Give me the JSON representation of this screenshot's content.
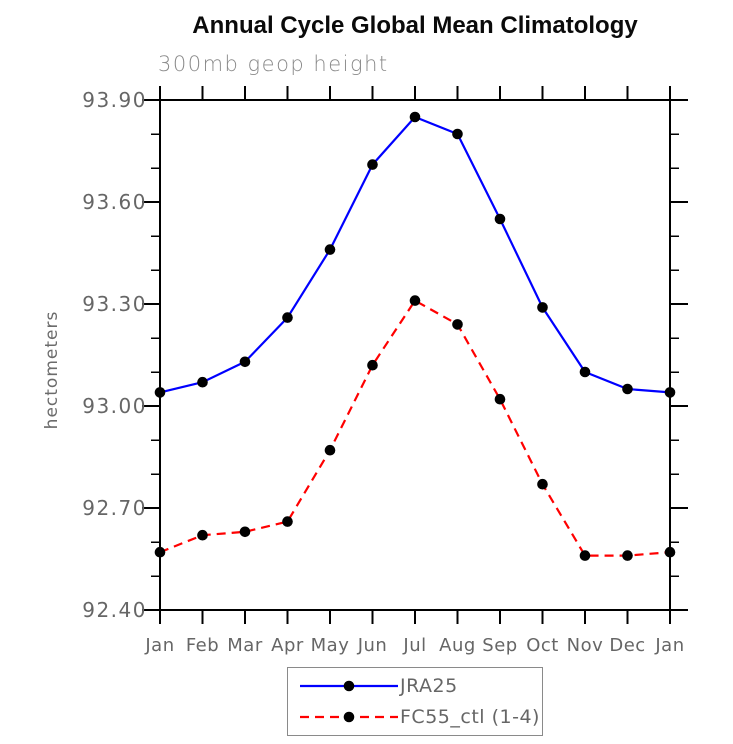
{
  "chart_data": {
    "type": "line",
    "title": "Annual Cycle Global Mean Climatology",
    "subtitle": "300mb geop height",
    "ylabel": "hectometers",
    "xlabel": "",
    "categories": [
      "Jan",
      "Feb",
      "Mar",
      "Apr",
      "May",
      "Jun",
      "Jul",
      "Aug",
      "Sep",
      "Oct",
      "Nov",
      "Dec",
      "Jan"
    ],
    "ylim": [
      92.4,
      93.9
    ],
    "grid": false,
    "legend_position": "bottom-center",
    "y_axis": {
      "minor_step": 0.1,
      "major_ticks": [
        {
          "value": 93.9,
          "label": "93.90"
        },
        {
          "value": 93.6,
          "label": "93.60"
        },
        {
          "value": 93.3,
          "label": "93.30"
        },
        {
          "value": 93.0,
          "label": "93.00"
        },
        {
          "value": 92.7,
          "label": "92.70"
        },
        {
          "value": 92.4,
          "label": "92.40"
        }
      ]
    },
    "series": [
      {
        "name": "JRA25",
        "color": "#0000ff",
        "line_style": "solid",
        "marker": "filled-circle",
        "marker_color": "#000000",
        "values": [
          93.04,
          93.07,
          93.13,
          93.26,
          93.46,
          93.71,
          93.85,
          93.8,
          93.55,
          93.29,
          93.1,
          93.05,
          93.04
        ]
      },
      {
        "name": "FC55_ctl (1-4)",
        "color": "#ff0000",
        "line_style": "dashed",
        "marker": "filled-circle",
        "marker_color": "#000000",
        "values": [
          92.57,
          92.62,
          92.63,
          92.66,
          92.87,
          93.12,
          93.31,
          93.24,
          93.02,
          92.77,
          92.56,
          92.56,
          92.57
        ]
      }
    ],
    "colors": {
      "axis": "#000000",
      "tick_label": "#666666",
      "subtitle": "#8a8a8a",
      "legend_border": "#8a8a8a"
    }
  }
}
